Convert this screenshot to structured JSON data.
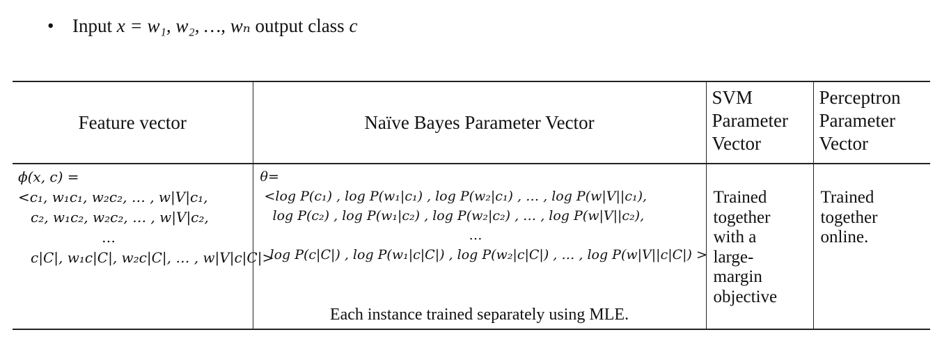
{
  "bullet": {
    "dot": "•",
    "input_label": "Input",
    "input_expr": "x = w₁, w₂, …, wₙ",
    "output_label": "output class",
    "output_var": "c"
  },
  "table": {
    "headers": {
      "feature": "Feature vector",
      "naive_bayes": "Naïve Bayes Parameter Vector",
      "svm": "SVM\nParameter\nVector",
      "perceptron": "Perceptron\nParameter\nVector"
    },
    "feature_vector": {
      "line0": "ϕ(x, c) =",
      "line1": "<c₁, w₁c₁, w₂c₂, … , w|V|c₁,",
      "line2": "c₂, w₁c₂, w₂c₂, … , w|V|c₂,",
      "line3": "…",
      "line4": "c|C|, w₁c|C|, w₂c|C|, … , w|V|c|C|>"
    },
    "naive_bayes": {
      "line0": "θ=",
      "line1": "<log P(c₁) , log P(w₁|c₁) , log P(w₂|c₁) , … , log P(w|V||c₁),",
      "line2": "log P(c₂) , log P(w₁|c₂) , log P(w₂|c₂) , … , log P(w|V||c₂),",
      "line3": "…",
      "line4": "log P(c|C|) , log P(w₁|c|C|) , log P(w₂|c|C|) , … , log P(w|V||c|C|) >",
      "note": "Each instance trained separately using MLE."
    },
    "svm": "Trained\ntogether\nwith a\nlarge-\nmargin\nobjective",
    "perceptron": "Trained\ntogether\nonline."
  }
}
